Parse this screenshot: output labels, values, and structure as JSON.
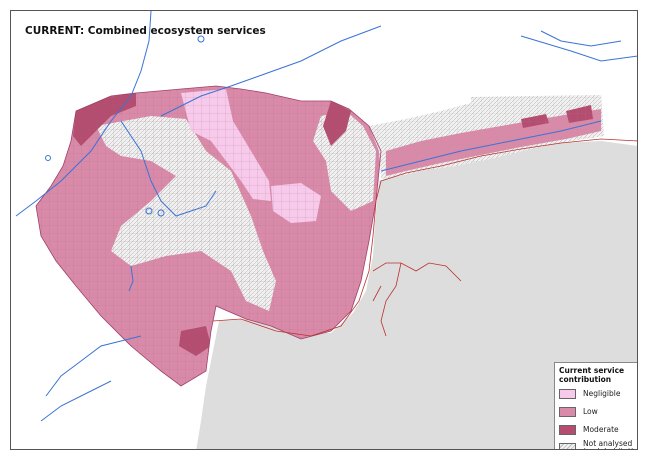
{
  "map": {
    "title": "CURRENT: Combined ecosystem services",
    "colors": {
      "negligible": "#f7c9ea",
      "low": "#d98aa8",
      "moderate": "#b44d70",
      "not_analysed": "#eeeeee",
      "sea": "#dddddd",
      "water": "#3a73d6",
      "coast": "#b8322f"
    }
  },
  "legend": {
    "title": "Current service\ncontribution",
    "items": [
      {
        "label": "Negligible",
        "color": "#f7c9ea"
      },
      {
        "label": "Low",
        "color": "#d98aa8"
      },
      {
        "label": "Moderate",
        "color": "#b44d70"
      },
      {
        "label": "Not analysed\n(rock habitat)",
        "color": "hatch"
      }
    ]
  }
}
